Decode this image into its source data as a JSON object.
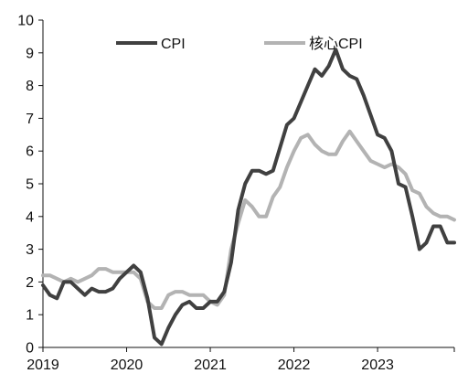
{
  "chart_data": {
    "type": "line",
    "ylim": [
      0,
      10
    ],
    "y_ticks": [
      0,
      1,
      2,
      3,
      4,
      5,
      6,
      7,
      8,
      9,
      10
    ],
    "x_tick_labels": [
      "2019",
      "2020",
      "2021",
      "2022",
      "2023"
    ],
    "x_range": [
      "2019-01",
      "2023-12"
    ],
    "grid": false,
    "legend_placement": "top",
    "x": [
      "2019-01",
      "2019-02",
      "2019-03",
      "2019-04",
      "2019-05",
      "2019-06",
      "2019-07",
      "2019-08",
      "2019-09",
      "2019-10",
      "2019-11",
      "2019-12",
      "2020-01",
      "2020-02",
      "2020-03",
      "2020-04",
      "2020-05",
      "2020-06",
      "2020-07",
      "2020-08",
      "2020-09",
      "2020-10",
      "2020-11",
      "2020-12",
      "2021-01",
      "2021-02",
      "2021-03",
      "2021-04",
      "2021-05",
      "2021-06",
      "2021-07",
      "2021-08",
      "2021-09",
      "2021-10",
      "2021-11",
      "2021-12",
      "2022-01",
      "2022-02",
      "2022-03",
      "2022-04",
      "2022-05",
      "2022-06",
      "2022-07",
      "2022-08",
      "2022-09",
      "2022-10",
      "2022-11",
      "2022-12",
      "2023-01",
      "2023-02",
      "2023-03",
      "2023-04",
      "2023-05",
      "2023-06",
      "2023-07",
      "2023-08",
      "2023-09",
      "2023-10",
      "2023-11",
      "2023-12"
    ],
    "series": [
      {
        "name": "CPI",
        "color": "#404040",
        "values": [
          1.9,
          1.6,
          1.5,
          2.0,
          2.0,
          1.8,
          1.6,
          1.8,
          1.7,
          1.7,
          1.8,
          2.1,
          2.3,
          2.5,
          2.3,
          1.5,
          0.3,
          0.1,
          0.6,
          1.0,
          1.3,
          1.4,
          1.2,
          1.2,
          1.4,
          1.4,
          1.7,
          2.6,
          4.2,
          5.0,
          5.4,
          5.4,
          5.3,
          5.4,
          6.1,
          6.8,
          7.0,
          7.5,
          8.0,
          8.5,
          8.3,
          8.6,
          9.1,
          8.5,
          8.3,
          8.2,
          7.7,
          7.1,
          6.5,
          6.4,
          6.0,
          5.0,
          4.9,
          4.0,
          3.0,
          3.2,
          3.7,
          3.7,
          3.2,
          3.2
        ]
      },
      {
        "name": "核心CPI",
        "color": "#b3b3b3",
        "values": [
          2.2,
          2.2,
          2.1,
          2.0,
          2.1,
          2.0,
          2.1,
          2.2,
          2.4,
          2.4,
          2.3,
          2.3,
          2.3,
          2.3,
          2.1,
          1.4,
          1.2,
          1.2,
          1.6,
          1.7,
          1.7,
          1.6,
          1.6,
          1.6,
          1.4,
          1.3,
          1.6,
          3.0,
          3.8,
          4.5,
          4.3,
          4.0,
          4.0,
          4.6,
          4.9,
          5.5,
          6.0,
          6.4,
          6.5,
          6.2,
          6.0,
          5.9,
          5.9,
          6.3,
          6.6,
          6.3,
          6.0,
          5.7,
          5.6,
          5.5,
          5.6,
          5.5,
          5.3,
          4.8,
          4.7,
          4.3,
          4.1,
          4.0,
          4.0,
          3.9
        ]
      }
    ]
  }
}
